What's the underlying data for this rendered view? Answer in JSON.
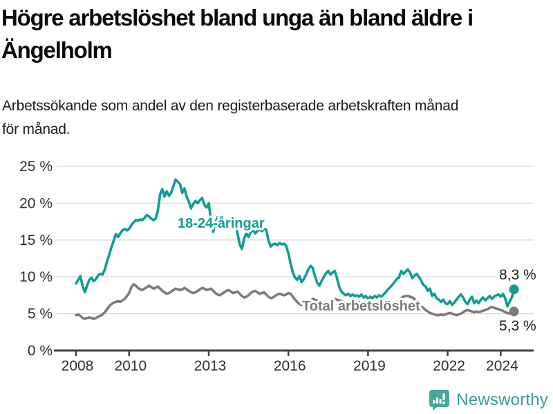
{
  "header": {
    "title_lines": [
      "Högre arbetslöshet bland unga än bland äldre i",
      "Ängelholm"
    ],
    "subtitle_lines": [
      "Arbetssökande som andel av den registerbaserade arbetskraften månad",
      "för månad."
    ]
  },
  "footer": {
    "brand": "Newsworthy",
    "logo_icon": "bar-chart-speech-bubble-icon"
  },
  "colors": {
    "youth_line": "#109c92",
    "total_line": "#7b7b7b",
    "grid": "#d8d8d8",
    "axis": "#3f3f3f",
    "tick_text": "#2e2e2e",
    "value_label": "#1a1a1a",
    "brand_teal": "#3e9a93",
    "brand_icon_teal": "#48a79c"
  },
  "chart_data": {
    "type": "line",
    "title": "",
    "xlabel": "",
    "ylabel": "",
    "x_start_year": 2008,
    "points_per_year": 12,
    "x_end_year_approx": 2024.5,
    "ylim": [
      0,
      25
    ],
    "grid": "horizontal",
    "legend_position": "inline-labels",
    "x_ticks": [
      {
        "value": 2008,
        "label": "2008"
      },
      {
        "value": 2010,
        "label": "2010"
      },
      {
        "value": 2013,
        "label": "2013"
      },
      {
        "value": 2016,
        "label": "2016"
      },
      {
        "value": 2019,
        "label": "2019"
      },
      {
        "value": 2022,
        "label": "2022"
      },
      {
        "value": 2024,
        "label": "2024"
      }
    ],
    "y_ticks": [
      {
        "value": 0,
        "label": "0 %"
      },
      {
        "value": 5,
        "label": "5 %"
      },
      {
        "value": 10,
        "label": "10 %"
      },
      {
        "value": 15,
        "label": "15 %"
      },
      {
        "value": 20,
        "label": "20 %"
      },
      {
        "value": 25,
        "label": "25 %"
      }
    ],
    "series": [
      {
        "name": "Total arbetslöshet",
        "color_key": "total_line",
        "end_label": "5,3 %",
        "values": [
          4.8,
          4.9,
          4.7,
          4.4,
          4.3,
          4.4,
          4.5,
          4.4,
          4.3,
          4.4,
          4.6,
          4.7,
          4.9,
          5.2,
          5.6,
          6.0,
          6.3,
          6.5,
          6.6,
          6.7,
          6.6,
          6.8,
          7.0,
          7.4,
          7.8,
          8.6,
          9.0,
          8.8,
          8.5,
          8.3,
          8.2,
          8.4,
          8.6,
          8.8,
          8.6,
          8.4,
          8.5,
          8.7,
          8.4,
          8.1,
          7.9,
          7.7,
          7.8,
          8.0,
          8.2,
          8.4,
          8.3,
          8.2,
          8.3,
          8.5,
          8.3,
          8.1,
          7.9,
          7.8,
          7.9,
          8.1,
          8.3,
          8.5,
          8.4,
          8.2,
          8.3,
          8.4,
          8.1,
          7.8,
          7.6,
          7.5,
          7.7,
          7.9,
          8.1,
          8.2,
          8.0,
          7.8,
          7.9,
          8.0,
          7.7,
          7.4,
          7.2,
          7.3,
          7.5,
          7.8,
          8.0,
          8.1,
          7.9,
          7.7,
          7.8,
          7.9,
          7.6,
          7.3,
          7.1,
          7.2,
          7.4,
          7.6,
          7.7,
          7.6,
          7.5,
          7.6,
          7.8,
          7.7,
          7.3,
          6.9,
          6.6,
          6.3,
          6.2,
          6.4,
          6.6,
          6.8,
          6.9,
          7.0,
          6.9,
          6.8,
          6.5,
          6.3,
          6.2,
          6.4,
          6.5,
          6.7,
          6.9,
          7.0,
          6.9,
          6.8,
          6.7,
          6.6,
          6.4,
          6.2,
          6.1,
          6.2,
          6.3,
          6.5,
          6.6,
          6.5,
          6.4,
          6.3,
          6.2,
          6.1,
          6.0,
          5.9,
          6.0,
          6.1,
          6.2,
          6.1,
          6.0,
          5.9,
          6.0,
          6.1,
          6.2,
          6.4,
          6.8,
          7.1,
          7.3,
          7.4,
          7.4,
          7.3,
          7.2,
          7.0,
          6.7,
          6.3,
          6.0,
          5.8,
          5.5,
          5.3,
          5.1,
          5.0,
          4.9,
          4.8,
          4.8,
          4.9,
          4.8,
          4.9,
          5.0,
          5.1,
          5.0,
          4.9,
          4.8,
          4.9,
          5.0,
          5.2,
          5.4,
          5.5,
          5.4,
          5.3,
          5.2,
          5.3,
          5.2,
          5.3,
          5.4,
          5.5,
          5.6,
          5.8,
          5.9,
          5.8,
          5.7,
          5.6,
          5.5,
          5.4,
          5.2,
          5.1,
          5.0,
          5.1,
          5.3
        ]
      },
      {
        "name": "18-24-åringar",
        "color_key": "youth_line",
        "end_label": "8,3 %",
        "values": [
          9.1,
          9.6,
          10.1,
          8.7,
          7.9,
          8.8,
          9.6,
          9.9,
          9.4,
          9.7,
          10.2,
          10.4,
          10.3,
          11.0,
          12.1,
          13.0,
          14.0,
          14.9,
          15.8,
          15.4,
          15.9,
          16.3,
          16.5,
          16.3,
          16.5,
          17.0,
          17.4,
          17.7,
          17.6,
          17.8,
          17.7,
          18.0,
          18.4,
          18.2,
          17.9,
          17.7,
          17.9,
          19.0,
          21.2,
          21.9,
          20.9,
          21.6,
          21.0,
          21.4,
          22.3,
          23.2,
          22.9,
          22.6,
          21.4,
          22.0,
          20.9,
          20.2,
          19.3,
          19.9,
          20.3,
          20.0,
          20.4,
          20.7,
          19.8,
          19.4,
          20.0,
          17.6,
          16.1,
          17.4,
          18.1,
          17.7,
          17.9,
          17.5,
          17.8,
          17.4,
          17.1,
          17.5,
          17.2,
          15.9,
          14.4,
          13.8,
          15.2,
          15.9,
          15.4,
          16.1,
          16.3,
          15.9,
          16.2,
          16.4,
          16.2,
          16.5,
          16.4,
          14.9,
          14.1,
          14.4,
          14.5,
          14.3,
          14.6,
          14.4,
          14.5,
          14.2,
          13.2,
          11.8,
          10.6,
          9.9,
          9.6,
          10.1,
          9.3,
          9.7,
          10.3,
          11.0,
          11.5,
          11.2,
          10.1,
          9.2,
          8.8,
          9.4,
          10.0,
          10.5,
          10.8,
          10.3,
          10.6,
          10.8,
          9.8,
          8.6,
          8.0,
          7.7,
          7.5,
          7.7,
          7.4,
          7.6,
          7.4,
          7.5,
          7.3,
          7.6,
          7.2,
          7.4,
          7.0,
          7.3,
          7.1,
          7.4,
          7.2,
          7.5,
          7.3,
          7.6,
          7.9,
          8.3,
          8.6,
          8.9,
          9.3,
          9.7,
          9.9,
          10.8,
          10.4,
          10.7,
          11.0,
          10.6,
          9.8,
          10.2,
          10.4,
          10.0,
          9.5,
          8.9,
          8.7,
          8.1,
          8.4,
          7.4,
          7.7,
          7.1,
          6.9,
          6.6,
          6.9,
          6.4,
          6.3,
          6.7,
          6.2,
          6.5,
          6.9,
          7.3,
          7.6,
          7.2,
          6.6,
          6.3,
          6.9,
          7.3,
          6.4,
          6.8,
          6.4,
          6.9,
          7.2,
          6.8,
          7.1,
          7.4,
          7.0,
          7.3,
          7.5,
          7.6,
          7.3,
          7.7,
          7.1,
          6.0,
          6.6,
          7.2,
          8.3
        ]
      }
    ]
  }
}
